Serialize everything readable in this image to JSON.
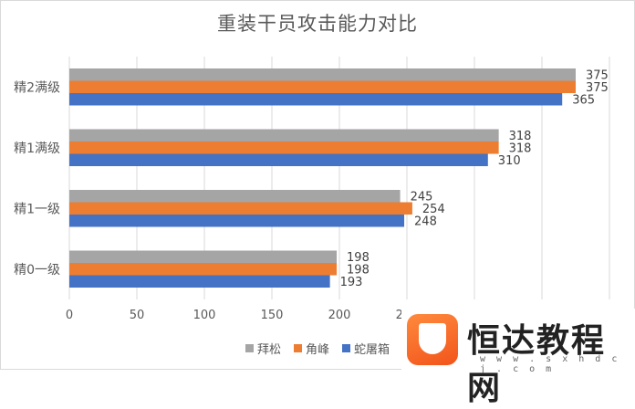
{
  "chart_data": {
    "type": "bar",
    "orientation": "horizontal",
    "title": "重装干员攻击能力对比",
    "categories": [
      "精0一级",
      "精1一级",
      "精1满级",
      "精2满级"
    ],
    "series": [
      {
        "name": "拜松",
        "values": [
          198,
          245,
          318,
          375
        ],
        "color": "#a5a5a5"
      },
      {
        "name": "角峰",
        "values": [
          198,
          254,
          318,
          375
        ],
        "color": "#ed7d31"
      },
      {
        "name": "蛇屠箱",
        "values": [
          193,
          248,
          310,
          365
        ],
        "color": "#4472c4"
      }
    ],
    "xlim": [
      0,
      400
    ],
    "xticks": [
      "0",
      "50",
      "100",
      "150",
      "200",
      "250",
      "300",
      "350",
      "400"
    ],
    "grid": true,
    "legend_position": "bottom"
  },
  "watermark": {
    "name": "恒达教程网",
    "url": "w w w . s x h d c j . c o m"
  }
}
